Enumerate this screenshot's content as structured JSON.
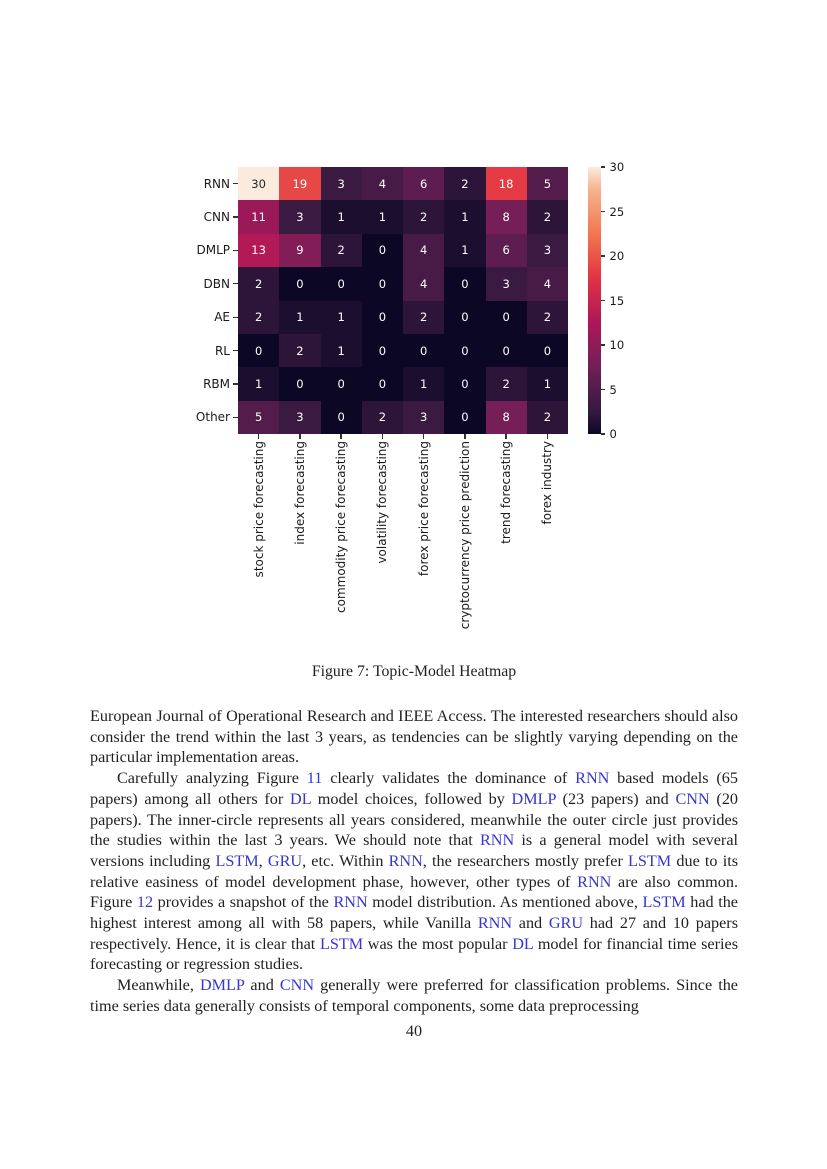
{
  "figure": {
    "caption": "Figure 7: Topic-Model Heatmap"
  },
  "chart_data": {
    "type": "heatmap",
    "rows": [
      "RNN",
      "CNN",
      "DMLP",
      "DBN",
      "AE",
      "RL",
      "RBM",
      "Other"
    ],
    "columns": [
      "stock price forecasting",
      "index forecasting",
      "commodity price forecasting",
      "volatility forecasting",
      "forex price forecasting",
      "cryptocurrency price prediction",
      "trend forecasting",
      "forex industry"
    ],
    "values": [
      [
        30,
        19,
        3,
        4,
        6,
        2,
        18,
        5
      ],
      [
        11,
        3,
        1,
        1,
        2,
        1,
        8,
        2
      ],
      [
        13,
        9,
        2,
        0,
        4,
        1,
        6,
        3
      ],
      [
        2,
        0,
        0,
        0,
        4,
        0,
        3,
        4
      ],
      [
        2,
        1,
        1,
        0,
        2,
        0,
        0,
        2
      ],
      [
        0,
        2,
        1,
        0,
        0,
        0,
        0,
        0
      ],
      [
        1,
        0,
        0,
        0,
        1,
        0,
        2,
        1
      ],
      [
        5,
        3,
        0,
        2,
        3,
        0,
        8,
        2
      ]
    ],
    "vmin": 0,
    "vmax": 30,
    "colorbar_ticks": [
      0,
      5,
      10,
      15,
      20,
      25,
      30
    ],
    "colormap": "rocket",
    "colormap_anchors": [
      [
        0.0,
        "#0B0724"
      ],
      [
        0.083,
        "#35193E"
      ],
      [
        0.25,
        "#701F57"
      ],
      [
        0.417,
        "#AD1759"
      ],
      [
        0.583,
        "#E13342"
      ],
      [
        0.75,
        "#F37651"
      ],
      [
        0.917,
        "#F6B48F"
      ],
      [
        1.0,
        "#FAEBDD"
      ]
    ],
    "annotation_text_colors": {
      "light": "#FFFFFF",
      "dark": "#262626"
    },
    "title": "",
    "xlabel": "",
    "ylabel": "",
    "legend": "colorbar-right"
  },
  "body": {
    "link_color": "#3535CF",
    "paragraphs": [
      {
        "indent": false,
        "segments": [
          {
            "text": "European Journal of Operational Research and IEEE Access.  The interested researchers should also consider the trend within the last 3 years, as tendencies can be slightly varying depending on the particular implementation areas.",
            "link": false
          }
        ]
      },
      {
        "indent": true,
        "segments": [
          {
            "text": "Carefully analyzing Figure ",
            "link": false
          },
          {
            "text": "11",
            "link": true
          },
          {
            "text": " clearly validates the dominance of ",
            "link": false
          },
          {
            "text": "RNN",
            "link": true
          },
          {
            "text": " based models (65 papers) among all others for ",
            "link": false
          },
          {
            "text": "DL",
            "link": true
          },
          {
            "text": " model choices, followed by ",
            "link": false
          },
          {
            "text": "DMLP",
            "link": true
          },
          {
            "text": " (23 papers) and ",
            "link": false
          },
          {
            "text": "CNN",
            "link": true
          },
          {
            "text": " (20 papers).  The inner-circle represents all years considered, meanwhile the outer circle just provides the studies within the last 3 years.  We should note that ",
            "link": false
          },
          {
            "text": "RNN",
            "link": true
          },
          {
            "text": " is a general model with several versions including ",
            "link": false
          },
          {
            "text": "LSTM",
            "link": true
          },
          {
            "text": ", ",
            "link": false
          },
          {
            "text": "GRU",
            "link": true
          },
          {
            "text": ", etc.  Within ",
            "link": false
          },
          {
            "text": "RNN",
            "link": true
          },
          {
            "text": ", the researchers mostly prefer ",
            "link": false
          },
          {
            "text": "LSTM",
            "link": true
          },
          {
            "text": " due to its relative easiness of model development phase, however, other types of ",
            "link": false
          },
          {
            "text": "RNN",
            "link": true
          },
          {
            "text": " are also common.  Figure ",
            "link": false
          },
          {
            "text": "12",
            "link": true
          },
          {
            "text": " provides a snapshot of the ",
            "link": false
          },
          {
            "text": "RNN",
            "link": true
          },
          {
            "text": " model distribution.  As mentioned above, ",
            "link": false
          },
          {
            "text": "LSTM",
            "link": true
          },
          {
            "text": " had the highest interest among all with 58 papers, while Vanilla ",
            "link": false
          },
          {
            "text": "RNN",
            "link": true
          },
          {
            "text": " and ",
            "link": false
          },
          {
            "text": "GRU",
            "link": true
          },
          {
            "text": " had 27 and 10 papers respectively.  Hence, it is clear that ",
            "link": false
          },
          {
            "text": "LSTM",
            "link": true
          },
          {
            "text": " was the most popular ",
            "link": false
          },
          {
            "text": "DL",
            "link": true
          },
          {
            "text": " model for financial time series forecasting or regression studies.",
            "link": false
          }
        ]
      },
      {
        "indent": true,
        "segments": [
          {
            "text": "Meanwhile, ",
            "link": false
          },
          {
            "text": "DMLP",
            "link": true
          },
          {
            "text": " and ",
            "link": false
          },
          {
            "text": "CNN",
            "link": true
          },
          {
            "text": " generally were preferred for classification problems.  Since the time series data generally consists of temporal components, some data preprocessing",
            "link": false
          }
        ]
      }
    ]
  },
  "page": {
    "number": "40"
  }
}
